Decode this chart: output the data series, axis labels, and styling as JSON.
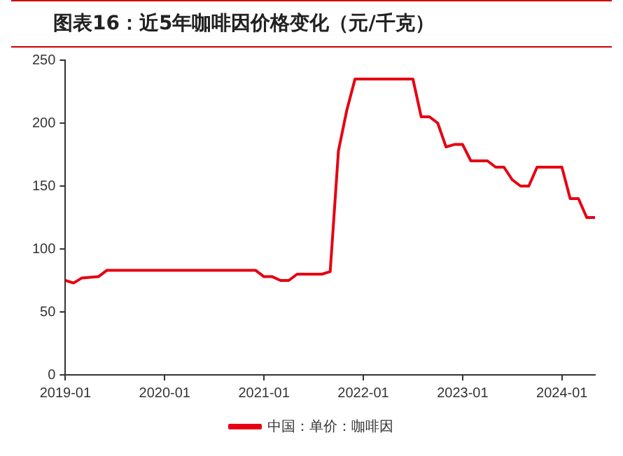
{
  "chart_data": {
    "type": "line",
    "title": "图表16：近5年咖啡因价格变化（元/千克）",
    "x": [
      "2019-01",
      "2019-02",
      "2019-03",
      "2019-05",
      "2019-06",
      "2020-12",
      "2021-01",
      "2021-02",
      "2021-03",
      "2021-04",
      "2021-05",
      "2021-08",
      "2021-09",
      "2021-10",
      "2021-11",
      "2021-12",
      "2022-07",
      "2022-08",
      "2022-09",
      "2022-10",
      "2022-11",
      "2022-12",
      "2023-01",
      "2023-02",
      "2023-04",
      "2023-05",
      "2023-06",
      "2023-07",
      "2023-08",
      "2023-09",
      "2023-10",
      "2024-01",
      "2024-02",
      "2024-03",
      "2024-04",
      "2024-05"
    ],
    "series": [
      {
        "name": "中国：单价：咖啡因",
        "color": "#e60012",
        "values": [
          75,
          73,
          77,
          78,
          83,
          83,
          78,
          78,
          75,
          75,
          80,
          80,
          82,
          178,
          210,
          235,
          235,
          205,
          205,
          200,
          181,
          183,
          183,
          170,
          170,
          165,
          165,
          155,
          150,
          150,
          165,
          165,
          140,
          140,
          125,
          125
        ]
      }
    ],
    "xlim": [
      "2019-01",
      "2024-05"
    ],
    "xticks": [
      "2019-01",
      "2020-01",
      "2021-01",
      "2022-01",
      "2023-01",
      "2024-01"
    ],
    "ylim": [
      0,
      250
    ],
    "yticks": [
      0,
      50,
      100,
      150,
      200,
      250
    ],
    "grid": false,
    "legend": "bottom",
    "marker": "none",
    "line_style": "solid"
  }
}
